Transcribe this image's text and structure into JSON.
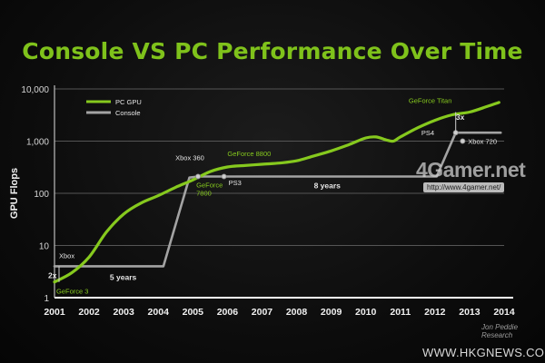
{
  "chart_data": {
    "type": "line",
    "title": "Console VS PC Performance Over Time",
    "xlabel": "",
    "ylabel": "GPU Flops",
    "yscale": "log",
    "ylim": [
      1,
      10000
    ],
    "xlim": [
      2001,
      2014
    ],
    "grid": true,
    "legend_position": "top-left",
    "x_ticks": [
      "2001",
      "2002",
      "2003",
      "2004",
      "2005",
      "2006",
      "2007",
      "2008",
      "2009",
      "2010",
      "2011",
      "2012",
      "2013",
      "2014"
    ],
    "y_ticks": [
      "1",
      "10",
      "100",
      "1,000",
      "10,000"
    ],
    "series": [
      {
        "name": "PC GPU",
        "color": "#86c91e",
        "points": [
          [
            2001.0,
            2
          ],
          [
            2001.5,
            3
          ],
          [
            2002.0,
            6
          ],
          [
            2002.5,
            18
          ],
          [
            2003.0,
            40
          ],
          [
            2003.5,
            65
          ],
          [
            2004.0,
            90
          ],
          [
            2004.5,
            130
          ],
          [
            2005.0,
            180
          ],
          [
            2005.5,
            260
          ],
          [
            2006.0,
            320
          ],
          [
            2006.5,
            340
          ],
          [
            2007.0,
            360
          ],
          [
            2007.5,
            380
          ],
          [
            2008.0,
            420
          ],
          [
            2008.5,
            520
          ],
          [
            2009.0,
            650
          ],
          [
            2009.5,
            850
          ],
          [
            2010.0,
            1150
          ],
          [
            2010.3,
            1200
          ],
          [
            2010.6,
            1050
          ],
          [
            2010.8,
            1000
          ],
          [
            2011.0,
            1200
          ],
          [
            2011.5,
            1800
          ],
          [
            2012.0,
            2500
          ],
          [
            2012.5,
            3200
          ],
          [
            2013.0,
            3600
          ],
          [
            2013.5,
            4600
          ],
          [
            2013.85,
            5500
          ]
        ]
      },
      {
        "name": "Console",
        "color": "#a3a3a3",
        "points": [
          [
            2001.0,
            4
          ],
          [
            2004.15,
            4
          ],
          [
            2004.9,
            200
          ],
          [
            2005.15,
            210
          ],
          [
            2012.05,
            210
          ],
          [
            2012.6,
            1450
          ],
          [
            2013.9,
            1450
          ]
        ]
      }
    ],
    "annotations": [
      {
        "text": "GeForce 3",
        "x": 2001.0,
        "y": 2
      },
      {
        "text": "Xbox",
        "x": 2001.0,
        "y": 4
      },
      {
        "text": "2x",
        "x": 2001.0,
        "y": 2.8
      },
      {
        "text": "5 years",
        "x": 2002.6,
        "y": 4
      },
      {
        "text": "Xbox 360",
        "x": 2005.1,
        "y": 210
      },
      {
        "text": "GeForce 7800",
        "x": 2005.1,
        "y": 180
      },
      {
        "text": "PS3",
        "x": 2005.9,
        "y": 215
      },
      {
        "text": "GeForce 8800",
        "x": 2006.0,
        "y": 320
      },
      {
        "text": "8 years",
        "x": 2008.5,
        "y": 210
      },
      {
        "text": "GeForce Titan",
        "x": 2012.5,
        "y": 3600
      },
      {
        "text": "3x",
        "x": 2012.5,
        "y": 2200
      },
      {
        "text": "PS4",
        "x": 2012.5,
        "y": 1450
      },
      {
        "text": "Xbox 720",
        "x": 2012.8,
        "y": 1000
      }
    ],
    "markers": [
      {
        "series": "Console",
        "x": 2005.15,
        "y": 210
      },
      {
        "series": "Console",
        "x": 2005.9,
        "y": 210
      },
      {
        "series": "Console",
        "x": 2012.6,
        "y": 1450
      },
      {
        "series": "Console",
        "x": 2012.8,
        "y": 1000
      }
    ],
    "source": "Jon Peddie Research"
  },
  "watermarks": {
    "brand": "4Gamer.net",
    "brand_url": "http://www.4gamer.net/",
    "site_url": "WWW.HKGNEWS.COM"
  },
  "colors": {
    "title": "#7fc21b",
    "pc_gpu": "#86c91e",
    "console": "#a3a3a3",
    "axis_text": "#d6d6d6",
    "annotation_green": "#86c91e",
    "annotation_white": "#e5e5e5"
  }
}
